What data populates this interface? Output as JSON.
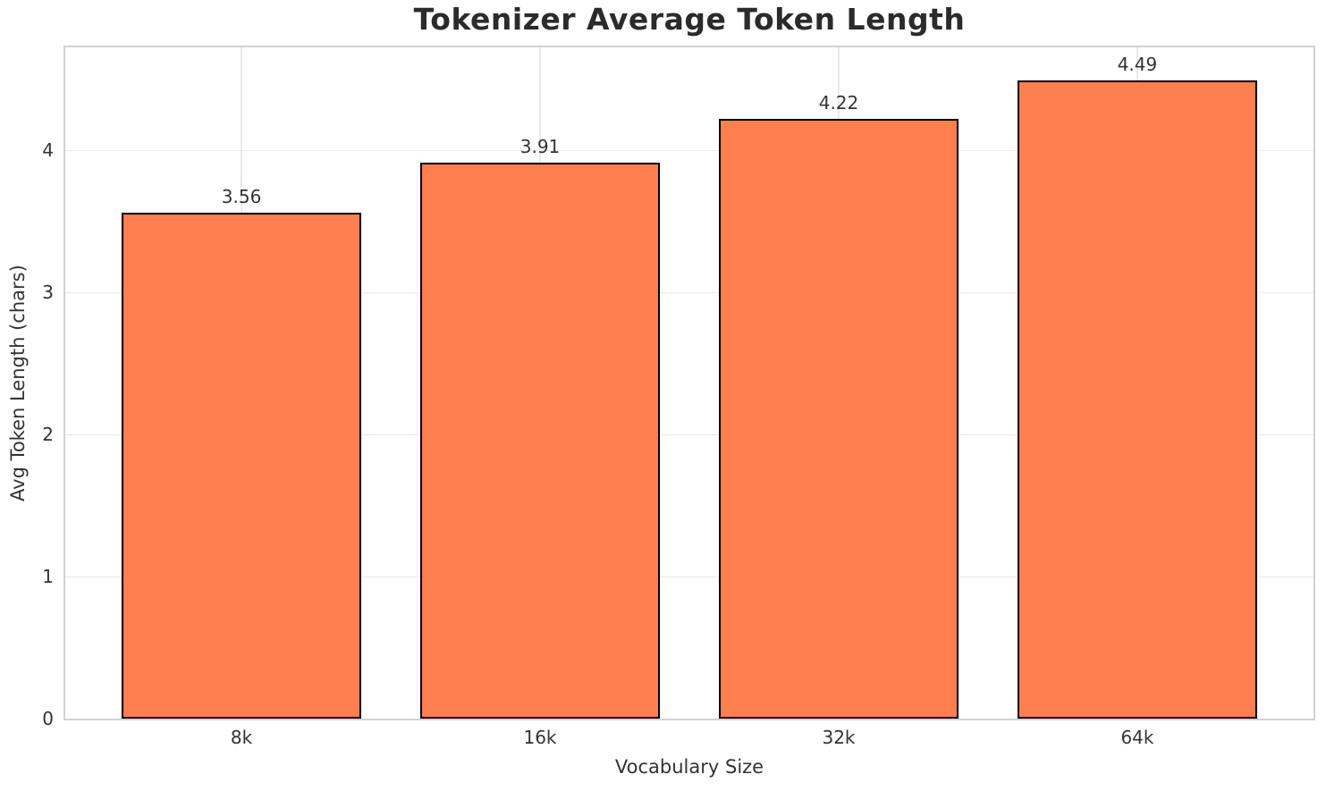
{
  "figure": {
    "background": "#ffffff"
  },
  "chart_data": {
    "type": "bar",
    "title": "Tokenizer Average Token Length",
    "xlabel": "Vocabulary Size",
    "ylabel": "Avg Token Length (chars)",
    "categories": [
      "8k",
      "16k",
      "32k",
      "64k"
    ],
    "values": [
      3.56,
      3.91,
      4.22,
      4.49
    ],
    "bar_labels": [
      "3.56",
      "3.91",
      "4.22",
      "4.49"
    ],
    "yticks": [
      0,
      1,
      2,
      3,
      4
    ],
    "ylim": [
      0,
      4.72
    ],
    "xlim": [
      -0.59,
      3.59
    ],
    "bar_width": 0.8,
    "grid": true,
    "legend": false,
    "colors": {
      "bar_fill": "#ff7f50",
      "bar_edge": "#000000",
      "grid": "#e9e9ef",
      "spine": "#d2d2d2",
      "title_text": "#2b2b2b",
      "tick_text": "#333333"
    }
  }
}
